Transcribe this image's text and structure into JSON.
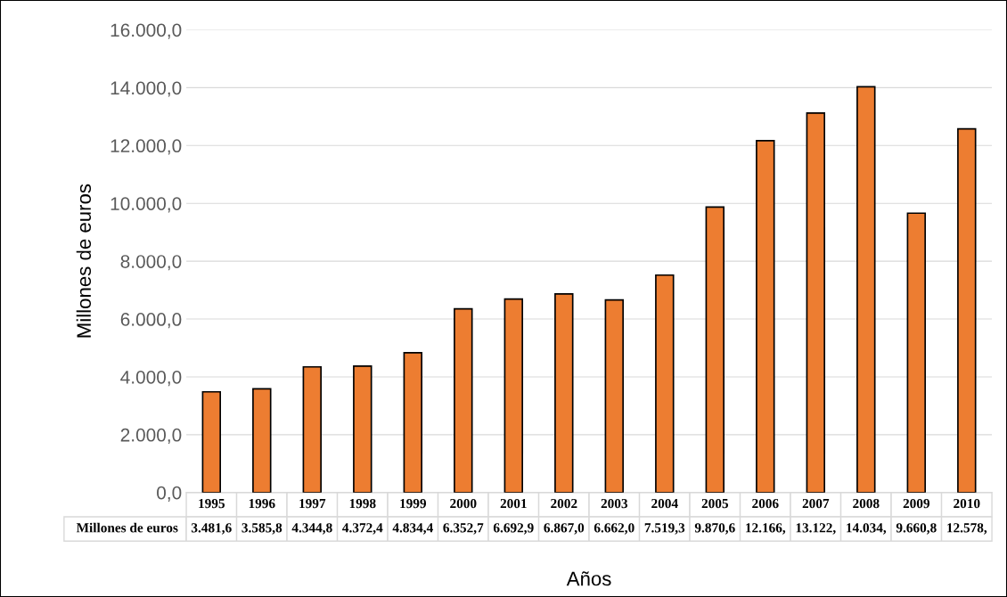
{
  "chart_data": {
    "type": "bar",
    "xlabel": "Años",
    "ylabel": "Millones de euros",
    "categories": [
      "1995",
      "1996",
      "1997",
      "1998",
      "1999",
      "2000",
      "2001",
      "2002",
      "2003",
      "2004",
      "2005",
      "2006",
      "2007",
      "2008",
      "2009",
      "2010"
    ],
    "series": [
      {
        "name": "Millones de euros",
        "color": "#ed7d31",
        "values": [
          3481.6,
          3585.8,
          4344.8,
          4372.4,
          4834.4,
          6352.7,
          6692.9,
          6867.0,
          6662.0,
          7519.3,
          9870.6,
          12166,
          13122,
          14034,
          9660.8,
          12578
        ],
        "value_labels": [
          "3.481,6",
          "3.585,8",
          "4.344,8",
          "4.372,4",
          "4.834,4",
          "6.352,7",
          "6.692,9",
          "6.867,0",
          "6.662,0",
          "7.519,3",
          "9.870,6",
          "12.166,",
          "13.122,",
          "14.034,",
          "9.660,8",
          "12.578,"
        ]
      }
    ],
    "ylim": [
      0,
      16000
    ],
    "yticks": [
      {
        "value": 0,
        "label": "0,0"
      },
      {
        "value": 2000,
        "label": "2.000,0"
      },
      {
        "value": 4000,
        "label": "4.000,0"
      },
      {
        "value": 6000,
        "label": "6.000,0"
      },
      {
        "value": 8000,
        "label": "8.000,0"
      },
      {
        "value": 10000,
        "label": "10.000,0"
      },
      {
        "value": 12000,
        "label": "12.000,0"
      },
      {
        "value": 14000,
        "label": "14.000,0"
      },
      {
        "value": 16000,
        "label": "16.000,0"
      }
    ],
    "grid": "y"
  }
}
